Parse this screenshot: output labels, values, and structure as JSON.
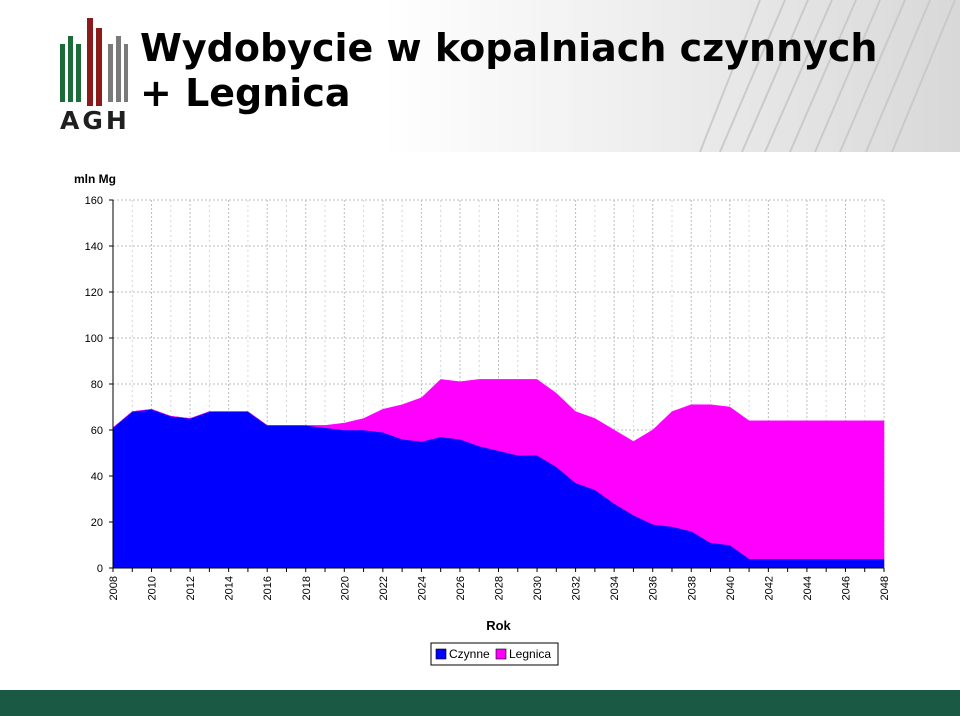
{
  "slide": {
    "title_line1": "Wydobycie w kopalniach czynnych",
    "title_line2": "+ Legnica",
    "logo_text": "AGH",
    "colors": {
      "footer": "#1a5a45",
      "logo_green": "#1c6b3a",
      "logo_red": "#8b1a1a",
      "logo_gray": "#7a7a7a"
    }
  },
  "chart_data": {
    "type": "area",
    "stacked": true,
    "ylabel": "mln Mg",
    "xlabel": "Rok",
    "ylim": [
      0,
      160
    ],
    "yticks": [
      0,
      20,
      40,
      60,
      80,
      100,
      120,
      140,
      160
    ],
    "xticks": [
      2008,
      2010,
      2012,
      2014,
      2016,
      2018,
      2020,
      2022,
      2024,
      2026,
      2028,
      2030,
      2032,
      2034,
      2036,
      2038,
      2040,
      2042,
      2044,
      2046,
      2048
    ],
    "grid": true,
    "legend_position": "bottom",
    "x": [
      2008,
      2009,
      2010,
      2011,
      2012,
      2013,
      2014,
      2015,
      2016,
      2017,
      2018,
      2019,
      2020,
      2021,
      2022,
      2023,
      2024,
      2025,
      2026,
      2027,
      2028,
      2029,
      2030,
      2031,
      2032,
      2033,
      2034,
      2035,
      2036,
      2037,
      2038,
      2039,
      2040,
      2041,
      2042,
      2043,
      2044,
      2045,
      2046,
      2047,
      2048
    ],
    "series": [
      {
        "name": "Czynne",
        "color": "#0000ff",
        "values": [
          61,
          68,
          69,
          66,
          65,
          68,
          68,
          68,
          62,
          62,
          62,
          61,
          60,
          60,
          59,
          56,
          55,
          57,
          56,
          53,
          51,
          49,
          49,
          44,
          37,
          34,
          28,
          23,
          19,
          18,
          16,
          11,
          10,
          4,
          4,
          4,
          4,
          4,
          4,
          4,
          4
        ]
      },
      {
        "name": "Legnica",
        "color": "#ff00ff",
        "values": [
          0,
          0,
          0,
          0,
          0,
          0,
          0,
          0,
          0,
          0,
          0,
          1,
          3,
          5,
          10,
          15,
          19,
          25,
          25,
          29,
          31,
          33,
          33,
          32,
          31,
          31,
          32,
          32,
          41,
          50,
          55,
          60,
          60,
          60,
          60,
          60,
          60,
          60,
          60,
          60,
          60
        ]
      }
    ]
  }
}
